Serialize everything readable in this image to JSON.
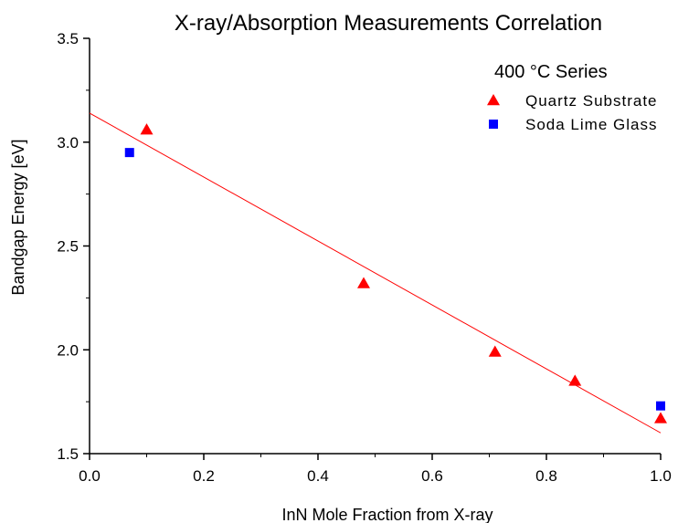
{
  "chart_data": {
    "type": "scatter",
    "title": "X-ray/Absorption Measurements Correlation",
    "xlabel": "InN Mole Fraction from X-ray",
    "ylabel": "Bandgap Energy [eV]",
    "xlim": [
      0.0,
      1.0
    ],
    "ylim": [
      1.5,
      3.5
    ],
    "xticks": [
      0.0,
      0.2,
      0.4,
      0.6,
      0.8,
      1.0
    ],
    "xtick_labels": [
      "0.0",
      "0.2",
      "0.4",
      "0.6",
      "0.8",
      "1.0"
    ],
    "yticks": [
      1.5,
      2.0,
      2.5,
      3.0,
      3.5
    ],
    "ytick_labels": [
      "1.5",
      "2.0",
      "2.5",
      "3.0",
      "3.5"
    ],
    "grid": false,
    "legend": {
      "title": "400 °C Series",
      "placement": "top-right"
    },
    "series": [
      {
        "name": "Quartz Substrate",
        "marker": "triangle",
        "color": "#ff0000",
        "x": [
          0.1,
          0.48,
          0.71,
          0.85,
          1.0
        ],
        "y": [
          3.06,
          2.32,
          1.99,
          1.85,
          1.67
        ]
      },
      {
        "name": "Soda Lime Glass",
        "marker": "square",
        "color": "#0000ff",
        "x": [
          0.07,
          1.0
        ],
        "y": [
          2.95,
          1.73
        ]
      }
    ],
    "fit_line": {
      "color": "#ff0000",
      "x": [
        0.0,
        1.0
      ],
      "y": [
        3.14,
        1.6
      ]
    }
  }
}
